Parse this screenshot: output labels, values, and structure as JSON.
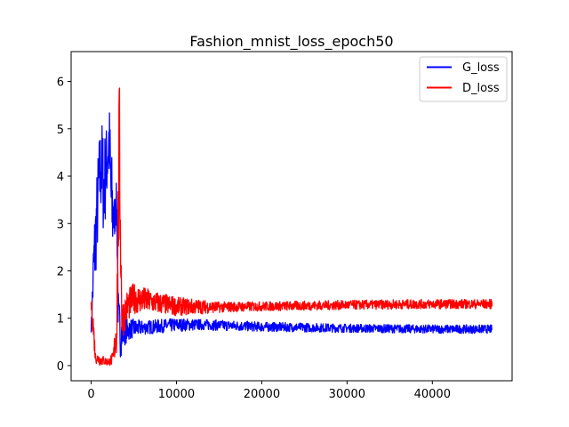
{
  "chart_data": {
    "type": "line",
    "title": "Fashion_mnist_loss_epoch50",
    "xlabel": "",
    "ylabel": "",
    "xlim": [
      -2350,
      49350
    ],
    "ylim": [
      -0.32,
      6.63
    ],
    "xticks": [
      0,
      10000,
      20000,
      30000,
      40000
    ],
    "xtick_labels": [
      "0",
      "10000",
      "20000",
      "30000",
      "40000"
    ],
    "yticks": [
      0,
      1,
      2,
      3,
      4,
      5,
      6
    ],
    "ytick_labels": [
      "0",
      "1",
      "2",
      "3",
      "4",
      "5",
      "6"
    ],
    "grid": false,
    "legend_position": "top-right",
    "noise_seed": 7,
    "series": [
      {
        "name": "G_loss",
        "color": "#0000ff",
        "envelope": [
          [
            0,
            0.7,
            0.8
          ],
          [
            300,
            1.2,
            3.0
          ],
          [
            600,
            2.0,
            3.9
          ],
          [
            900,
            2.8,
            4.8
          ],
          [
            1200,
            3.2,
            5.3
          ],
          [
            1500,
            2.6,
            4.9
          ],
          [
            1800,
            3.4,
            5.1
          ],
          [
            2100,
            3.8,
            5.7
          ],
          [
            2400,
            2.0,
            4.6
          ],
          [
            2700,
            2.6,
            3.6
          ],
          [
            3000,
            3.0,
            3.9
          ],
          [
            3200,
            0.1,
            1.5
          ],
          [
            3500,
            0.2,
            1.2
          ],
          [
            3800,
            0.4,
            1.0
          ],
          [
            4500,
            0.55,
            1.0
          ],
          [
            6000,
            0.65,
            0.95
          ],
          [
            10000,
            0.72,
            1.0
          ],
          [
            13000,
            0.75,
            0.98
          ],
          [
            20000,
            0.72,
            0.92
          ],
          [
            30000,
            0.7,
            0.88
          ],
          [
            40000,
            0.68,
            0.86
          ],
          [
            47000,
            0.68,
            0.86
          ]
        ]
      },
      {
        "name": "D_loss",
        "color": "#ff0000",
        "envelope": [
          [
            0,
            1.2,
            1.4
          ],
          [
            200,
            0.6,
            1.3
          ],
          [
            500,
            0.05,
            0.3
          ],
          [
            1000,
            0.0,
            0.25
          ],
          [
            1500,
            0.0,
            0.2
          ],
          [
            2000,
            0.0,
            0.15
          ],
          [
            2600,
            0.0,
            0.3
          ],
          [
            3000,
            0.2,
            1.5
          ],
          [
            3300,
            3.0,
            6.3
          ],
          [
            3600,
            0.5,
            1.4
          ],
          [
            4200,
            0.9,
            1.6
          ],
          [
            5000,
            1.1,
            1.75
          ],
          [
            7000,
            1.1,
            1.6
          ],
          [
            10000,
            1.05,
            1.45
          ],
          [
            15000,
            1.12,
            1.35
          ],
          [
            20000,
            1.15,
            1.35
          ],
          [
            30000,
            1.18,
            1.38
          ],
          [
            40000,
            1.2,
            1.4
          ],
          [
            47000,
            1.2,
            1.4
          ]
        ]
      }
    ]
  }
}
